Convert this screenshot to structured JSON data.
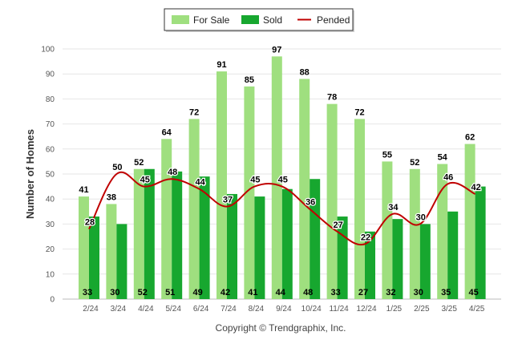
{
  "chart_data": {
    "type": "bar",
    "categories": [
      "2/24",
      "3/24",
      "4/24",
      "5/24",
      "6/24",
      "7/24",
      "8/24",
      "9/24",
      "10/24",
      "11/24",
      "12/24",
      "1/25",
      "2/25",
      "3/25",
      "4/25"
    ],
    "series": [
      {
        "name": "For Sale",
        "kind": "bar",
        "color": "#9FDF7F",
        "values": [
          41,
          38,
          52,
          64,
          72,
          91,
          85,
          97,
          88,
          78,
          72,
          55,
          52,
          54,
          62
        ]
      },
      {
        "name": "Sold",
        "kind": "bar",
        "color": "#17A72F",
        "values": [
          33,
          30,
          52,
          51,
          49,
          42,
          41,
          44,
          48,
          33,
          27,
          32,
          30,
          35,
          45
        ]
      },
      {
        "name": "Pended",
        "kind": "line",
        "color": "#C00000",
        "values": [
          28,
          50,
          45,
          48,
          44,
          37,
          45,
          45,
          36,
          27,
          22,
          34,
          30,
          46,
          42
        ]
      }
    ],
    "ylabel": "Number of Homes",
    "ylim": [
      0,
      100
    ],
    "yticks": [
      0,
      10,
      20,
      30,
      40,
      50,
      60,
      70,
      80,
      90,
      100
    ],
    "grid": true,
    "legend_position": "top-center"
  },
  "footer": {
    "credit": "Copyright © Trendgraphix, Inc."
  }
}
